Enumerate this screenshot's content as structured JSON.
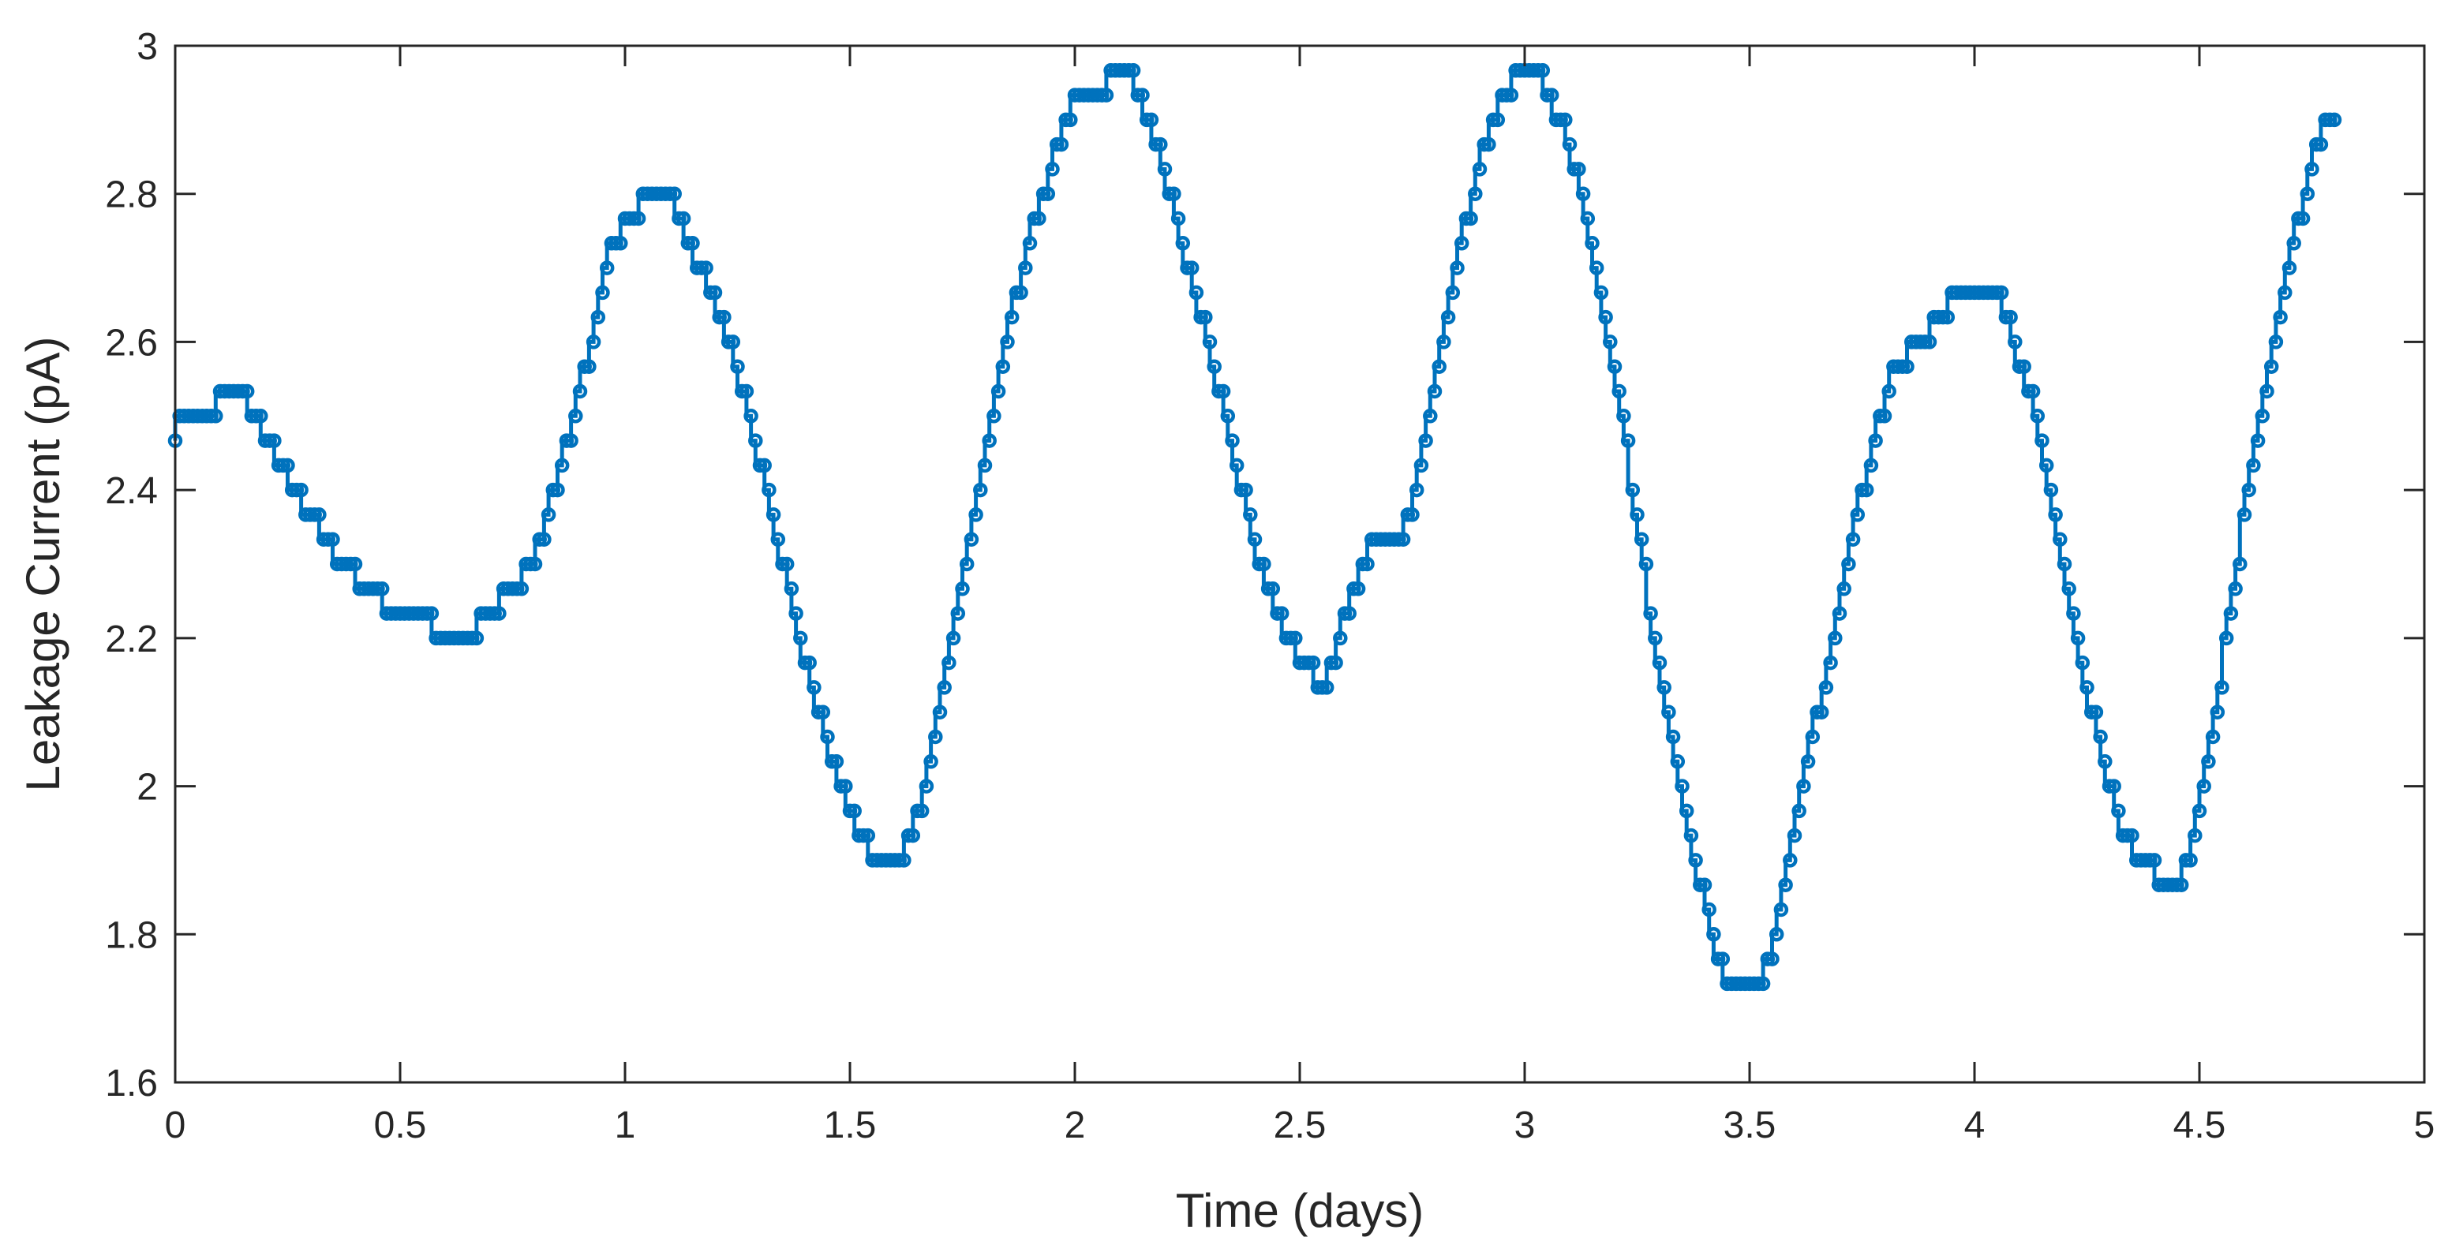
{
  "chart_data": {
    "type": "line",
    "title": "",
    "xlabel": "Time (days)",
    "ylabel": "Leakage Current (pA)",
    "xlim": [
      0,
      5
    ],
    "ylim": [
      1.6,
      3
    ],
    "xticks": [
      0,
      0.5,
      1,
      1.5,
      2,
      2.5,
      3,
      3.5,
      4,
      4.5,
      5
    ],
    "xtick_labels": [
      "0",
      "0.5",
      "1",
      "1.5",
      "2",
      "2.5",
      "3",
      "3.5",
      "4",
      "4.5",
      "5"
    ],
    "yticks": [
      1.6,
      1.8,
      2,
      2.2,
      2.4,
      2.6,
      2.8,
      3
    ],
    "ytick_labels": [
      "1.6",
      "1.8",
      "2",
      "2.2",
      "2.4",
      "2.6",
      "2.8",
      "3"
    ],
    "grid": false,
    "legend": "none",
    "series_color": "#0072BD",
    "axis_color": "#262626",
    "series": [
      {
        "x": [
          0,
          0.02,
          0.07,
          0.12,
          0.15,
          0.21,
          0.27,
          0.34,
          0.42,
          0.5,
          0.55,
          0.6,
          0.64,
          0.7,
          0.8,
          0.86,
          0.93,
          0.97,
          1.02,
          1.05,
          1.1,
          1.17,
          1.25,
          1.33,
          1.4,
          1.47,
          1.52,
          1.57,
          1.62,
          1.67,
          1.72,
          1.77,
          1.81,
          1.85,
          1.9,
          1.95,
          1.98,
          2.01,
          2.04,
          2.06,
          2.09,
          2.12,
          2.15,
          2.2,
          2.27,
          2.34,
          2.4,
          2.46,
          2.5,
          2.53,
          2.55,
          2.58,
          2.62,
          2.67,
          2.72,
          2.75,
          2.8,
          2.85,
          2.9,
          2.95,
          3.0,
          3.03,
          3.06,
          3.1,
          3.14,
          3.2,
          3.26,
          3.31,
          3.37,
          3.42,
          3.46,
          3.5,
          3.53,
          3.57,
          3.62,
          3.68,
          3.73,
          3.78,
          3.83,
          3.88,
          3.93,
          3.97,
          4.02,
          4.05,
          4.09,
          4.14,
          4.19,
          4.24,
          4.29,
          4.34,
          4.38,
          4.42,
          4.45,
          4.48,
          4.52,
          4.57,
          4.62,
          4.67,
          4.71,
          4.75,
          4.78,
          4.8
        ],
        "y": [
          2.47,
          2.5,
          2.5,
          2.53,
          2.53,
          2.47,
          2.4,
          2.33,
          2.27,
          2.23,
          2.23,
          2.2,
          2.2,
          2.23,
          2.3,
          2.43,
          2.6,
          2.73,
          2.77,
          2.8,
          2.8,
          2.7,
          2.57,
          2.37,
          2.17,
          2.03,
          1.93,
          1.9,
          1.9,
          2.0,
          2.17,
          2.33,
          2.47,
          2.6,
          2.73,
          2.83,
          2.9,
          2.93,
          2.93,
          2.93,
          2.97,
          2.97,
          2.93,
          2.83,
          2.67,
          2.5,
          2.33,
          2.23,
          2.17,
          2.17,
          2.13,
          2.17,
          2.27,
          2.33,
          2.33,
          2.37,
          2.53,
          2.7,
          2.83,
          2.93,
          2.97,
          2.97,
          2.93,
          2.87,
          2.77,
          2.57,
          2.33,
          2.13,
          1.93,
          1.8,
          1.73,
          1.73,
          1.73,
          1.83,
          2.0,
          2.17,
          2.33,
          2.47,
          2.57,
          2.6,
          2.63,
          2.67,
          2.67,
          2.67,
          2.6,
          2.5,
          2.33,
          2.17,
          2.03,
          1.93,
          1.9,
          1.87,
          1.87,
          1.9,
          2.03,
          2.23,
          2.43,
          2.6,
          2.73,
          2.83,
          2.9,
          2.9
        ]
      }
    ]
  }
}
